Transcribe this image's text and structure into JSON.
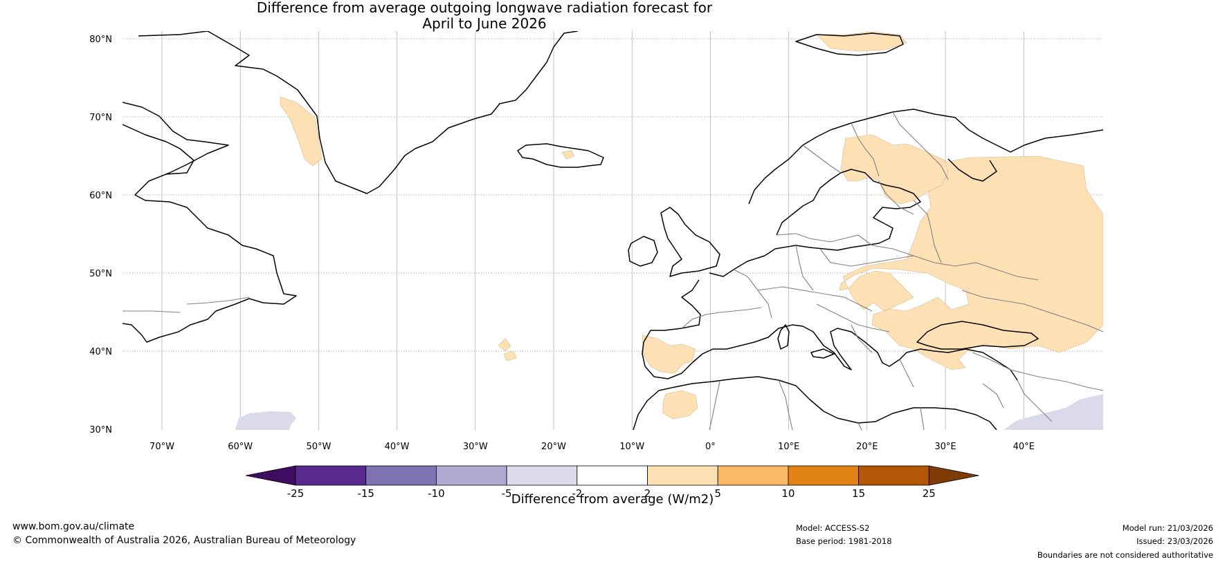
{
  "title": {
    "line1": "Difference from average outgoing longwave radiation forecast for",
    "line2": "April to June 2026"
  },
  "map": {
    "lat_labels": [
      "80°N",
      "70°N",
      "60°N",
      "50°N",
      "40°N",
      "30°N"
    ],
    "lon_labels": [
      "70°W",
      "60°W",
      "50°W",
      "40°W",
      "30°W",
      "20°W",
      "10°W",
      "0°",
      "10°E",
      "20°E",
      "30°E",
      "40°E"
    ]
  },
  "colorbar": {
    "ticks": [
      "-25",
      "-15",
      "-10",
      "-5",
      "-2",
      "2",
      "5",
      "10",
      "15",
      "25"
    ],
    "colors": [
      "#3f0d5f",
      "#582a8c",
      "#7e72b1",
      "#b2a9d3",
      "#dadaeb",
      "#ffffff",
      "#fde0b3",
      "#fbb866",
      "#e08214",
      "#b35706",
      "#7f3b08"
    ],
    "label": "Difference from average (W/m2)"
  },
  "footer": {
    "url": "www.bom.gov.au/climate",
    "copyright": "© Commonwealth of Australia 2026, Australian Bureau of Meteorology",
    "model": "Model: ACCESS-S2",
    "base_period": "Base period: 1981-2018",
    "model_run": "Model run: 21/03/2026",
    "issued": "Issued: 23/03/2026",
    "disclaimer": "Boundaries are not considered authoritative"
  },
  "colors": {
    "coast": "#000000",
    "border": "#808080",
    "positive_anomaly": "#fde0b3",
    "negative_anomaly": "#dadaeb",
    "grid": "#999999"
  }
}
